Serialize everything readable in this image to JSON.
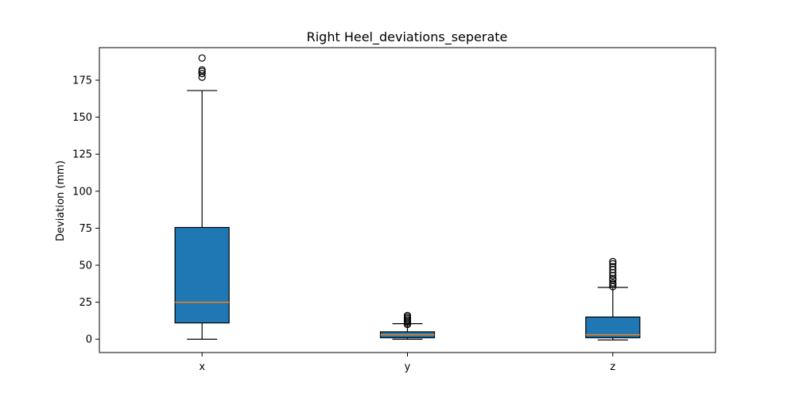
{
  "chart_data": {
    "type": "box",
    "title": "Right Heel_deviations_seperate",
    "xlabel": "",
    "ylabel": "Deviation (mm)",
    "ylim": [
      -9,
      197
    ],
    "yticks": [
      0,
      25,
      50,
      75,
      100,
      125,
      150,
      175
    ],
    "categories": [
      "x",
      "y",
      "z"
    ],
    "boxes": [
      {
        "category": "x",
        "whisker_low": 0,
        "q1": 11,
        "median": 25,
        "q3": 75.5,
        "whisker_high": 168,
        "outliers": [
          177,
          179.5,
          181,
          182,
          190
        ]
      },
      {
        "category": "y",
        "whisker_low": 0,
        "q1": 1,
        "median": 3,
        "q3": 5,
        "whisker_high": 10.5,
        "outliers": [
          10,
          11,
          12,
          13,
          14,
          15,
          16
        ]
      },
      {
        "category": "z",
        "whisker_low": -0.5,
        "q1": 1,
        "median": 3,
        "q3": 15,
        "whisker_high": 35,
        "outliers": [
          35.5,
          37,
          38,
          40,
          41,
          43,
          45,
          47,
          49,
          51,
          52.5
        ]
      }
    ],
    "box_color": "#1f77b4",
    "median_color": "#ff7f0e",
    "grid": false,
    "legend": false
  }
}
